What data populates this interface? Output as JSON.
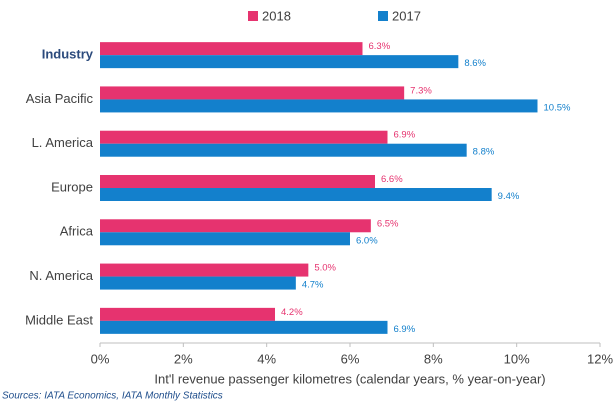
{
  "chart_data": {
    "type": "hbar",
    "categories": [
      "Industry",
      "Asia Pacific",
      "L. America",
      "Europe",
      "Africa",
      "N. America",
      "Middle East"
    ],
    "series": [
      {
        "name": "2018",
        "color": "#e6336f",
        "values": [
          6.3,
          7.3,
          6.9,
          6.6,
          6.5,
          5.0,
          4.2
        ],
        "value_labels": [
          "6.3%",
          "7.3%",
          "6.9%",
          "6.6%",
          "6.5%",
          "5.0%",
          "4.2%"
        ]
      },
      {
        "name": "2017",
        "color": "#1380cc",
        "values": [
          8.6,
          10.5,
          8.8,
          9.4,
          6.0,
          4.7,
          6.9
        ],
        "value_labels": [
          "8.6%",
          "10.5%",
          "8.8%",
          "9.4%",
          "6.0%",
          "4.7%",
          "6.9%"
        ]
      }
    ],
    "xlim": [
      0,
      12
    ],
    "xticks": [
      {
        "value": 0,
        "label": "0%"
      },
      {
        "value": 2,
        "label": "2%"
      },
      {
        "value": 4,
        "label": "4%"
      },
      {
        "value": 6,
        "label": "6%"
      },
      {
        "value": 8,
        "label": "8%"
      },
      {
        "value": 10,
        "label": "10%"
      },
      {
        "value": 12,
        "label": "12%"
      }
    ],
    "x_label": "Int'l revenue passenger kilometres (calendar years, % year-on-year)",
    "source": "Sources: IATA Economics, IATA Monthly Statistics",
    "legend": "top"
  }
}
